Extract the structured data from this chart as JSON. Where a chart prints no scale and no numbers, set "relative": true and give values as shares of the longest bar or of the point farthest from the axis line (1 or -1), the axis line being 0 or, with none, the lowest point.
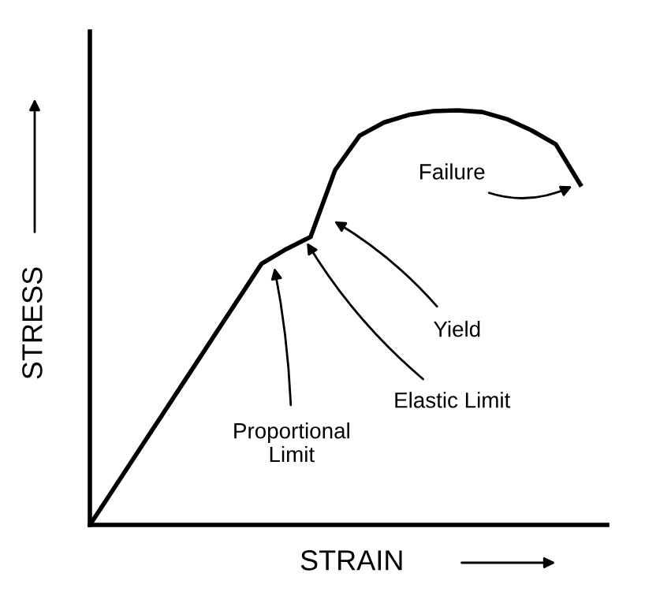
{
  "chart_data": {
    "type": "line",
    "relative": true,
    "xlabel": "STRAIN",
    "ylabel": "STRESS",
    "categories": [
      null,
      null,
      null,
      null,
      null,
      null,
      null,
      null,
      null,
      null,
      null,
      null,
      null,
      null,
      null,
      null,
      null,
      null,
      null,
      null,
      null
    ],
    "series": [
      {
        "color": "#000000",
        "values": [
          0,
          0.09,
          0.18,
          0.27,
          0.36,
          0.45,
          0.54,
          0.63,
          0.665,
          0.695,
          0.856,
          0.939,
          0.971,
          0.989,
          0.998,
          1.0,
          0.996,
          0.979,
          0.952,
          0.918,
          0.821
        ]
      }
    ],
    "annotations": [
      "Failure",
      "Yield",
      "Elastic Limit",
      "Proportional\nLimit"
    ]
  }
}
